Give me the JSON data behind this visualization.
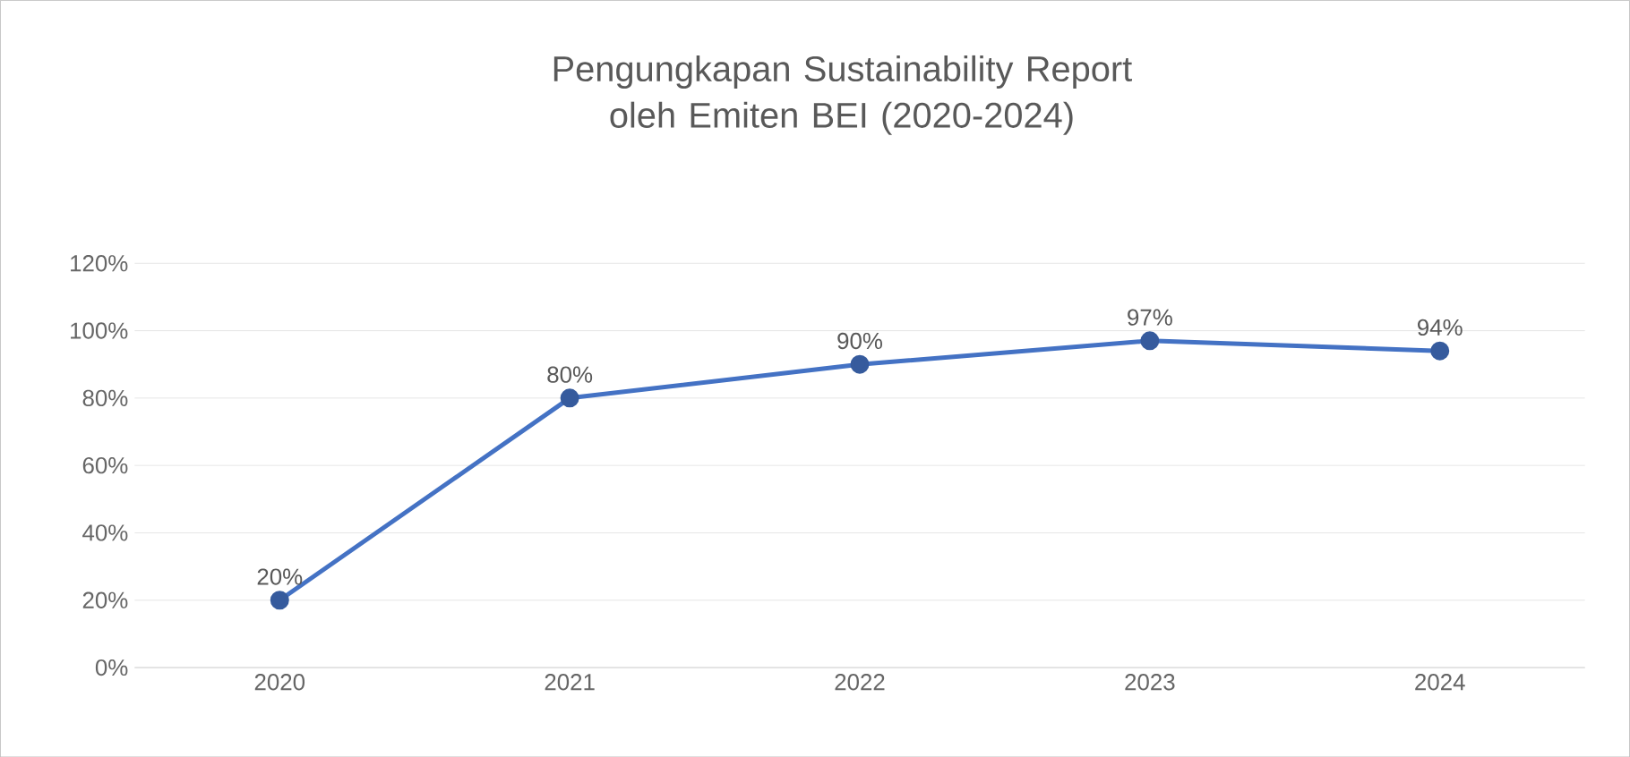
{
  "chart_data": {
    "type": "line",
    "title": "Pengungkapan Sustainability Report oleh Emiten BEI (2020-2024)",
    "categories": [
      "2020",
      "2021",
      "2022",
      "2023",
      "2024"
    ],
    "series": [
      {
        "color": "#4472c4",
        "values": [
          20,
          80,
          90,
          97,
          94
        ],
        "value_labels": [
          "20%",
          "80%",
          "90%",
          "97%",
          "94%"
        ]
      }
    ],
    "ylim": [
      0,
      120
    ],
    "yticks": [
      {
        "value": 0,
        "label": "0%"
      },
      {
        "value": 20,
        "label": "20%"
      },
      {
        "value": 40,
        "label": "40%"
      },
      {
        "value": 60,
        "label": "60%"
      },
      {
        "value": 80,
        "label": "80%"
      },
      {
        "value": 100,
        "label": "100%"
      },
      {
        "value": 120,
        "label": "120%"
      }
    ],
    "grid": "y",
    "marker": "circle",
    "line_style": "solid"
  }
}
